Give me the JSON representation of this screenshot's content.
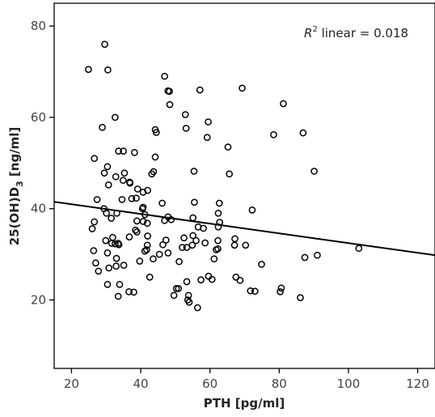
{
  "chart_data": {
    "type": "scatter",
    "title": "",
    "xlabel": "PTH [pg/ml]",
    "ylabel": "25(OH)D",
    "ylabel_sub": "3",
    "ylabel_unit": " [ng/ml]",
    "xlim": [
      15,
      125
    ],
    "ylim": [
      5,
      85
    ],
    "x_ticks": [
      20,
      40,
      60,
      80,
      100,
      120
    ],
    "y_ticks": [
      20,
      40,
      60,
      80
    ],
    "grid": false,
    "annotation": {
      "r2_symbol": "R",
      "r2_sup": "2",
      "r2_text": " linear = 0.018"
    },
    "fit_line": {
      "x": [
        15,
        125
      ],
      "y": [
        41.5,
        29.8
      ]
    },
    "points": [
      [
        24.9,
        70.5
      ],
      [
        29.6,
        76.0
      ],
      [
        30.5,
        70.4
      ],
      [
        28.9,
        57.8
      ],
      [
        32.6,
        60.0
      ],
      [
        26.6,
        51.0
      ],
      [
        29.5,
        47.8
      ],
      [
        30.4,
        49.2
      ],
      [
        30.7,
        45.2
      ],
      [
        33.6,
        52.6
      ],
      [
        35.0,
        52.6
      ],
      [
        38.2,
        52.3
      ],
      [
        32.8,
        47.0
      ],
      [
        35.3,
        47.8
      ],
      [
        34.9,
        46.2
      ],
      [
        36.8,
        45.8
      ],
      [
        36.9,
        45.6
      ],
      [
        39.1,
        44.3
      ],
      [
        38.7,
        42.3
      ],
      [
        40.7,
        43.6
      ],
      [
        37.4,
        42.2
      ],
      [
        34.6,
        42.0
      ],
      [
        33.1,
        39.0
      ],
      [
        27.4,
        42.0
      ],
      [
        29.4,
        40.0
      ],
      [
        30.1,
        39.0
      ],
      [
        31.5,
        37.9
      ],
      [
        26.6,
        37.1
      ],
      [
        26.0,
        35.6
      ],
      [
        29.9,
        33.0
      ],
      [
        31.9,
        33.7
      ],
      [
        32.6,
        32.3
      ],
      [
        33.7,
        32.1
      ],
      [
        36.7,
        33.8
      ],
      [
        38.5,
        35.3
      ],
      [
        38.9,
        37.3
      ],
      [
        40.5,
        40.0
      ],
      [
        41.2,
        38.7
      ],
      [
        40.7,
        37.2
      ],
      [
        38.9,
        34.9
      ],
      [
        26.4,
        30.8
      ],
      [
        30.4,
        30.3
      ],
      [
        33.5,
        32.4
      ],
      [
        31.6,
        32.4
      ],
      [
        33.0,
        29.1
      ],
      [
        27.0,
        28.1
      ],
      [
        30.8,
        27.0
      ],
      [
        32.9,
        27.4
      ],
      [
        35.1,
        27.6
      ],
      [
        27.8,
        26.3
      ],
      [
        30.4,
        23.4
      ],
      [
        33.9,
        23.4
      ],
      [
        36.6,
        21.8
      ],
      [
        38.0,
        21.7
      ],
      [
        33.5,
        20.8
      ],
      [
        39.7,
        28.5
      ],
      [
        41.2,
        30.7
      ],
      [
        41.7,
        31.0
      ],
      [
        41.9,
        32.0
      ],
      [
        42.0,
        34.0
      ],
      [
        40.7,
        40.3
      ],
      [
        41.9,
        36.8
      ],
      [
        42.0,
        44.0
      ],
      [
        43.2,
        47.6
      ],
      [
        43.7,
        48.1
      ],
      [
        44.2,
        51.3
      ],
      [
        44.2,
        57.3
      ],
      [
        44.5,
        56.7
      ],
      [
        45.4,
        30.0
      ],
      [
        42.6,
        25.0
      ],
      [
        43.6,
        29.0
      ],
      [
        46.2,
        41.2
      ],
      [
        46.9,
        37.4
      ],
      [
        47.9,
        38.2
      ],
      [
        48.8,
        37.6
      ],
      [
        46.4,
        32.1
      ],
      [
        47.3,
        33.1
      ],
      [
        47.9,
        30.3
      ],
      [
        46.9,
        69.0
      ],
      [
        47.9,
        65.8
      ],
      [
        48.3,
        65.7
      ],
      [
        48.4,
        62.8
      ],
      [
        49.6,
        21.0
      ],
      [
        50.3,
        22.5
      ],
      [
        50.9,
        22.5
      ],
      [
        51.1,
        28.4
      ],
      [
        52.0,
        31.5
      ],
      [
        52.5,
        33.6
      ],
      [
        52.9,
        60.6
      ],
      [
        53.1,
        57.6
      ],
      [
        53.3,
        24.0
      ],
      [
        53.3,
        31.5
      ],
      [
        53.6,
        20.0
      ],
      [
        54.0,
        19.5
      ],
      [
        53.8,
        21.0
      ],
      [
        54.9,
        32.0
      ],
      [
        55.1,
        34.1
      ],
      [
        55.1,
        38.0
      ],
      [
        55.5,
        41.4
      ],
      [
        55.4,
        48.2
      ],
      [
        56.0,
        33.0
      ],
      [
        56.6,
        36.0
      ],
      [
        56.4,
        18.3
      ],
      [
        57.4,
        24.4
      ],
      [
        57.1,
        66.0
      ],
      [
        58.1,
        35.7
      ],
      [
        58.6,
        32.5
      ],
      [
        59.2,
        55.6
      ],
      [
        59.5,
        59.0
      ],
      [
        59.6,
        25.2
      ],
      [
        60.6,
        24.5
      ],
      [
        61.2,
        29.0
      ],
      [
        61.8,
        31.0
      ],
      [
        62.3,
        31.2
      ],
      [
        62.3,
        33.0
      ],
      [
        62.4,
        36.0
      ],
      [
        62.4,
        39.0
      ],
      [
        62.7,
        41.2
      ],
      [
        62.8,
        37.0
      ],
      [
        65.2,
        53.5
      ],
      [
        65.6,
        47.6
      ],
      [
        67.1,
        32.0
      ],
      [
        67.2,
        33.4
      ],
      [
        67.5,
        25.0
      ],
      [
        68.7,
        24.3
      ],
      [
        69.3,
        66.4
      ],
      [
        70.3,
        32.0
      ],
      [
        71.7,
        22.0
      ],
      [
        72.2,
        39.7
      ],
      [
        73.0,
        21.9
      ],
      [
        74.9,
        27.8
      ],
      [
        78.4,
        56.2
      ],
      [
        80.3,
        21.8
      ],
      [
        80.6,
        22.6
      ],
      [
        81.2,
        63.0
      ],
      [
        86.1,
        20.5
      ],
      [
        86.9,
        56.6
      ],
      [
        87.4,
        29.3
      ],
      [
        90.1,
        48.2
      ],
      [
        91.0,
        29.8
      ],
      [
        103.0,
        31.3
      ]
    ]
  }
}
